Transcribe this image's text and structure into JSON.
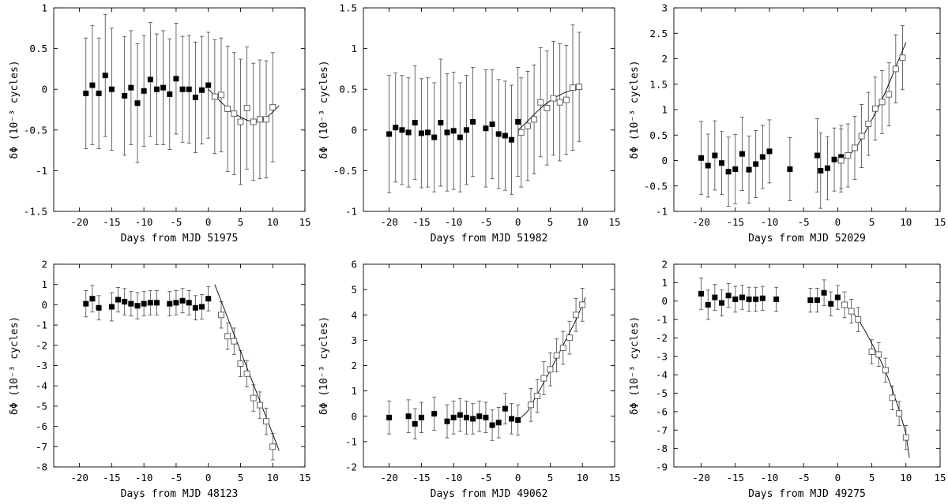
{
  "figure": {
    "description_panels": 6
  },
  "chart_data": [
    {
      "type": "scatter",
      "xlabel": "Days from MJD 51975",
      "ylabel": "δΦ (10⁻³ cycles)",
      "xlim": [
        -24,
        15
      ],
      "ylim": [
        -1.5,
        1
      ],
      "xticks": [
        -20,
        -15,
        -10,
        -5,
        0,
        5,
        10,
        15
      ],
      "yticks": [
        -1.5,
        -1,
        -0.5,
        0,
        0.5,
        1
      ],
      "yticklabels": [
        "-1.5",
        "-1",
        "-0.5",
        "0",
        "0.5",
        "1"
      ],
      "filled": [
        {
          "x": -19,
          "y": -0.05,
          "err": 0.68
        },
        {
          "x": -18,
          "y": 0.05,
          "err": 0.73
        },
        {
          "x": -17,
          "y": -0.05,
          "err": 0.68
        },
        {
          "x": -16,
          "y": 0.17,
          "err": 0.75
        },
        {
          "x": -15,
          "y": 0.0,
          "err": 0.75
        },
        {
          "x": -13,
          "y": -0.08,
          "err": 0.73
        },
        {
          "x": -12,
          "y": 0.02,
          "err": 0.7
        },
        {
          "x": -11,
          "y": -0.17,
          "err": 0.73
        },
        {
          "x": -10,
          "y": -0.02,
          "err": 0.68
        },
        {
          "x": -9,
          "y": 0.12,
          "err": 0.7
        },
        {
          "x": -8,
          "y": 0.0,
          "err": 0.68
        },
        {
          "x": -7,
          "y": 0.02,
          "err": 0.7
        },
        {
          "x": -6,
          "y": -0.06,
          "err": 0.68
        },
        {
          "x": -5,
          "y": 0.13,
          "err": 0.68
        },
        {
          "x": -4,
          "y": 0.0,
          "err": 0.65
        },
        {
          "x": -3,
          "y": 0.0,
          "err": 0.66
        },
        {
          "x": -2,
          "y": -0.1,
          "err": 0.68
        },
        {
          "x": -1,
          "y": -0.01,
          "err": 0.66
        },
        {
          "x": 0,
          "y": 0.05,
          "err": 0.65
        }
      ],
      "open": [
        {
          "x": 1,
          "y": -0.09,
          "err": 0.7
        },
        {
          "x": 2,
          "y": -0.07,
          "err": 0.7
        },
        {
          "x": 3,
          "y": -0.24,
          "err": 0.77
        },
        {
          "x": 4,
          "y": -0.3,
          "err": 0.75
        },
        {
          "x": 5,
          "y": -0.4,
          "err": 0.77
        },
        {
          "x": 6,
          "y": -0.23,
          "err": 0.75
        },
        {
          "x": 7,
          "y": -0.4,
          "err": 0.72
        },
        {
          "x": 8,
          "y": -0.37,
          "err": 0.73
        },
        {
          "x": 9,
          "y": -0.37,
          "err": 0.72
        },
        {
          "x": 10,
          "y": -0.22,
          "err": 0.67
        }
      ],
      "fit": {
        "x": [
          0,
          2,
          4,
          6,
          7,
          8,
          9,
          10,
          11
        ],
        "y": [
          0.0,
          -0.16,
          -0.3,
          -0.38,
          -0.4,
          -0.39,
          -0.35,
          -0.28,
          -0.2
        ]
      }
    },
    {
      "type": "scatter",
      "xlabel": "Days from MJD 51982",
      "ylabel": "δΦ (10⁻³ cycles)",
      "xlim": [
        -24,
        15
      ],
      "ylim": [
        -1,
        1.5
      ],
      "xticks": [
        -20,
        -15,
        -10,
        -5,
        0,
        5,
        10,
        15
      ],
      "yticks": [
        -1,
        -0.5,
        0,
        0.5,
        1,
        1.5
      ],
      "yticklabels": [
        "-1",
        "-0.5",
        "0",
        "0.5",
        "1",
        "1.5"
      ],
      "filled": [
        {
          "x": -20,
          "y": -0.05,
          "err": 0.72
        },
        {
          "x": -19,
          "y": 0.03,
          "err": 0.67
        },
        {
          "x": -18,
          "y": 0.0,
          "err": 0.67
        },
        {
          "x": -17,
          "y": -0.03,
          "err": 0.67
        },
        {
          "x": -16,
          "y": 0.09,
          "err": 0.7
        },
        {
          "x": -15,
          "y": -0.04,
          "err": 0.67
        },
        {
          "x": -14,
          "y": -0.03,
          "err": 0.67
        },
        {
          "x": -13,
          "y": -0.09,
          "err": 0.67
        },
        {
          "x": -12,
          "y": 0.09,
          "err": 0.78
        },
        {
          "x": -11,
          "y": -0.03,
          "err": 0.72
        },
        {
          "x": -10,
          "y": -0.01,
          "err": 0.72
        },
        {
          "x": -9,
          "y": -0.09,
          "err": 0.67
        },
        {
          "x": -8,
          "y": 0.0,
          "err": 0.67
        },
        {
          "x": -7,
          "y": 0.1,
          "err": 0.67
        },
        {
          "x": -5,
          "y": 0.02,
          "err": 0.72
        },
        {
          "x": -4,
          "y": 0.07,
          "err": 0.67
        },
        {
          "x": -3,
          "y": -0.05,
          "err": 0.67
        },
        {
          "x": -2,
          "y": -0.07,
          "err": 0.67
        },
        {
          "x": -1,
          "y": -0.12,
          "err": 0.67
        },
        {
          "x": 0,
          "y": 0.1,
          "err": 0.67
        }
      ],
      "open": [
        {
          "x": 0.5,
          "y": -0.03,
          "err": 0.67
        },
        {
          "x": 1.5,
          "y": 0.05,
          "err": 0.67
        },
        {
          "x": 2.5,
          "y": 0.13,
          "err": 0.67
        },
        {
          "x": 3.5,
          "y": 0.34,
          "err": 0.67
        },
        {
          "x": 4.5,
          "y": 0.27,
          "err": 0.7
        },
        {
          "x": 5.5,
          "y": 0.39,
          "err": 0.7
        },
        {
          "x": 6.5,
          "y": 0.34,
          "err": 0.72
        },
        {
          "x": 7.5,
          "y": 0.37,
          "err": 0.67
        },
        {
          "x": 8.5,
          "y": 0.52,
          "err": 0.77
        },
        {
          "x": 9.5,
          "y": 0.53,
          "err": 0.67
        }
      ],
      "fit": {
        "x": [
          0,
          1,
          2,
          3,
          4,
          5,
          6,
          7,
          8,
          9,
          10
        ],
        "y": [
          0.0,
          0.07,
          0.15,
          0.23,
          0.3,
          0.36,
          0.41,
          0.45,
          0.48,
          0.5,
          0.51
        ]
      }
    },
    {
      "type": "scatter",
      "xlabel": "Days from MJD 52029",
      "ylabel": "δΦ (10⁻³ cycles)",
      "xlim": [
        -24,
        15
      ],
      "ylim": [
        -1,
        3
      ],
      "xticks": [
        -20,
        -15,
        -10,
        -5,
        0,
        5,
        10,
        15
      ],
      "yticks": [
        -1,
        -0.5,
        0,
        0.5,
        1,
        1.5,
        2,
        2.5,
        3
      ],
      "yticklabels": [
        "-1",
        "-0.5",
        "0",
        "0.5",
        "1",
        "1.5",
        "2",
        "2.5",
        "3"
      ],
      "filled": [
        {
          "x": -20,
          "y": 0.05,
          "err": 0.72
        },
        {
          "x": -19,
          "y": -0.1,
          "err": 0.62
        },
        {
          "x": -18,
          "y": 0.1,
          "err": 0.68
        },
        {
          "x": -17,
          "y": -0.05,
          "err": 0.62
        },
        {
          "x": -16,
          "y": -0.22,
          "err": 0.68
        },
        {
          "x": -15,
          "y": -0.17,
          "err": 0.68
        },
        {
          "x": -14,
          "y": 0.13,
          "err": 0.72
        },
        {
          "x": -13,
          "y": -0.18,
          "err": 0.66
        },
        {
          "x": -12,
          "y": -0.07,
          "err": 0.66
        },
        {
          "x": -11,
          "y": 0.07,
          "err": 0.62
        },
        {
          "x": -10,
          "y": 0.18,
          "err": 0.62
        },
        {
          "x": -7,
          "y": -0.17,
          "err": 0.62
        },
        {
          "x": -3,
          "y": 0.1,
          "err": 0.72
        },
        {
          "x": -2.5,
          "y": -0.2,
          "err": 0.74
        },
        {
          "x": -1.5,
          "y": -0.15,
          "err": 0.62
        },
        {
          "x": -0.5,
          "y": 0.02,
          "err": 0.62
        },
        {
          "x": 0.5,
          "y": 0.07,
          "err": 0.62
        }
      ],
      "open": [
        {
          "x": 0.5,
          "y": 0.0,
          "err": 0.62
        },
        {
          "x": 1.5,
          "y": 0.1,
          "err": 0.62
        },
        {
          "x": 2.5,
          "y": 0.25,
          "err": 0.62
        },
        {
          "x": 3.5,
          "y": 0.48,
          "err": 0.62
        },
        {
          "x": 4.5,
          "y": 0.72,
          "err": 0.62
        },
        {
          "x": 5.5,
          "y": 1.02,
          "err": 0.62
        },
        {
          "x": 6.5,
          "y": 1.15,
          "err": 0.62
        },
        {
          "x": 7.5,
          "y": 1.3,
          "err": 0.62
        },
        {
          "x": 8.5,
          "y": 1.8,
          "err": 0.67
        },
        {
          "x": 9.5,
          "y": 2.02,
          "err": 0.63
        }
      ],
      "fit": {
        "x": [
          0,
          1,
          2,
          3,
          4,
          5,
          6,
          7,
          8,
          9,
          10
        ],
        "y": [
          0.0,
          0.04,
          0.15,
          0.32,
          0.55,
          0.8,
          1.06,
          1.35,
          1.67,
          2.0,
          2.32
        ]
      }
    },
    {
      "type": "scatter",
      "xlabel": "Days from MJD 48123",
      "ylabel": "δΦ (10⁻³ cycles)",
      "xlim": [
        -24,
        15
      ],
      "ylim": [
        -8,
        2
      ],
      "xticks": [
        -20,
        -15,
        -10,
        -5,
        0,
        5,
        10,
        15
      ],
      "yticks": [
        -8,
        -7,
        -6,
        -5,
        -4,
        -3,
        -2,
        -1,
        0,
        1,
        2
      ],
      "yticklabels": [
        "-8",
        "-7",
        "-6",
        "-5",
        "-4",
        "-3",
        "-2",
        "-1",
        "0",
        "1",
        "2"
      ],
      "filled": [
        {
          "x": -19,
          "y": 0.05,
          "err": 0.65
        },
        {
          "x": -18,
          "y": 0.3,
          "err": 0.65
        },
        {
          "x": -17,
          "y": -0.15,
          "err": 0.6
        },
        {
          "x": -15,
          "y": -0.1,
          "err": 0.7
        },
        {
          "x": -14,
          "y": 0.25,
          "err": 0.6
        },
        {
          "x": -13,
          "y": 0.15,
          "err": 0.65
        },
        {
          "x": -12,
          "y": 0.05,
          "err": 0.6
        },
        {
          "x": -11,
          "y": -0.05,
          "err": 0.65
        },
        {
          "x": -10,
          "y": 0.05,
          "err": 0.6
        },
        {
          "x": -9,
          "y": 0.1,
          "err": 0.6
        },
        {
          "x": -8,
          "y": 0.1,
          "err": 0.6
        },
        {
          "x": -6,
          "y": 0.05,
          "err": 0.6
        },
        {
          "x": -5,
          "y": 0.1,
          "err": 0.6
        },
        {
          "x": -4,
          "y": 0.2,
          "err": 0.6
        },
        {
          "x": -3,
          "y": 0.1,
          "err": 0.6
        },
        {
          "x": -2,
          "y": -0.15,
          "err": 0.6
        },
        {
          "x": -1,
          "y": -0.1,
          "err": 0.6
        },
        {
          "x": 0,
          "y": 0.3,
          "err": 0.6
        }
      ],
      "open": [
        {
          "x": 2,
          "y": -0.5,
          "err": 0.65
        },
        {
          "x": 3,
          "y": -1.55,
          "err": 0.65
        },
        {
          "x": 4,
          "y": -1.8,
          "err": 0.65
        },
        {
          "x": 5,
          "y": -2.9,
          "err": 0.65
        },
        {
          "x": 6,
          "y": -3.4,
          "err": 0.65
        },
        {
          "x": 7,
          "y": -4.6,
          "err": 0.65
        },
        {
          "x": 8,
          "y": -4.95,
          "err": 0.65
        },
        {
          "x": 9,
          "y": -5.75,
          "err": 0.65
        },
        {
          "x": 10,
          "y": -7.0,
          "err": 0.65
        }
      ],
      "fit": {
        "x": [
          1,
          11
        ],
        "y": [
          1.0,
          -7.2
        ]
      }
    },
    {
      "type": "scatter",
      "xlabel": "Days from MJD 49062",
      "ylabel": "δΦ (10⁻³ cycles)",
      "xlim": [
        -24,
        15
      ],
      "ylim": [
        -2,
        6
      ],
      "xticks": [
        -20,
        -15,
        -10,
        -5,
        0,
        5,
        10,
        15
      ],
      "yticks": [
        -2,
        -1,
        0,
        1,
        2,
        3,
        4,
        5,
        6
      ],
      "yticklabels": [
        "-2",
        "-1",
        "0",
        "1",
        "2",
        "3",
        "4",
        "5",
        "6"
      ],
      "filled": [
        {
          "x": -20,
          "y": -0.05,
          "err": 0.65
        },
        {
          "x": -17,
          "y": 0.0,
          "err": 0.65
        },
        {
          "x": -16,
          "y": -0.3,
          "err": 0.6
        },
        {
          "x": -15,
          "y": -0.05,
          "err": 0.6
        },
        {
          "x": -13,
          "y": 0.1,
          "err": 0.65
        },
        {
          "x": -11,
          "y": -0.2,
          "err": 0.65
        },
        {
          "x": -10,
          "y": -0.05,
          "err": 0.65
        },
        {
          "x": -9,
          "y": 0.05,
          "err": 0.65
        },
        {
          "x": -8,
          "y": -0.05,
          "err": 0.65
        },
        {
          "x": -7,
          "y": -0.1,
          "err": 0.6
        },
        {
          "x": -6,
          "y": 0.0,
          "err": 0.6
        },
        {
          "x": -5,
          "y": -0.05,
          "err": 0.6
        },
        {
          "x": -4,
          "y": -0.35,
          "err": 0.6
        },
        {
          "x": -3,
          "y": -0.25,
          "err": 0.6
        },
        {
          "x": -2,
          "y": 0.3,
          "err": 0.6
        },
        {
          "x": -1,
          "y": -0.1,
          "err": 0.6
        },
        {
          "x": 0,
          "y": -0.15,
          "err": 0.6
        }
      ],
      "open": [
        {
          "x": 2,
          "y": 0.45,
          "err": 0.65
        },
        {
          "x": 3,
          "y": 0.8,
          "err": 0.65
        },
        {
          "x": 4,
          "y": 1.5,
          "err": 0.65
        },
        {
          "x": 5,
          "y": 1.85,
          "err": 0.65
        },
        {
          "x": 6,
          "y": 2.4,
          "err": 0.65
        },
        {
          "x": 7,
          "y": 2.7,
          "err": 0.65
        },
        {
          "x": 8,
          "y": 3.1,
          "err": 0.65
        },
        {
          "x": 9,
          "y": 4.0,
          "err": 0.65
        },
        {
          "x": 10,
          "y": 4.4,
          "err": 0.65
        }
      ],
      "fit": {
        "x": [
          0.5,
          1.5,
          2.5,
          3.5,
          5,
          7,
          9,
          10.5
        ],
        "y": [
          -0.05,
          0.2,
          0.65,
          1.1,
          1.8,
          2.8,
          3.8,
          4.7
        ]
      }
    },
    {
      "type": "scatter",
      "xlabel": "Days from MJD 49275",
      "ylabel": "δΦ (10⁻³ cycles)",
      "xlim": [
        -24,
        15
      ],
      "ylim": [
        -9,
        2
      ],
      "xticks": [
        -20,
        -15,
        -10,
        -5,
        0,
        5,
        10,
        15
      ],
      "yticks": [
        -9,
        -8,
        -7,
        -6,
        -5,
        -4,
        -3,
        -2,
        -1,
        0,
        1,
        2
      ],
      "yticklabels": [
        "-9",
        "-8",
        "-7",
        "-6",
        "-5",
        "-4",
        "-3",
        "-2",
        "-1",
        "0",
        "1",
        "2"
      ],
      "filled": [
        {
          "x": -20,
          "y": 0.4,
          "err": 0.85
        },
        {
          "x": -19,
          "y": -0.2,
          "err": 0.8
        },
        {
          "x": -18,
          "y": 0.2,
          "err": 0.7
        },
        {
          "x": -17,
          "y": -0.1,
          "err": 0.7
        },
        {
          "x": -16,
          "y": 0.3,
          "err": 0.65
        },
        {
          "x": -15,
          "y": 0.1,
          "err": 0.7
        },
        {
          "x": -14,
          "y": 0.2,
          "err": 0.65
        },
        {
          "x": -13,
          "y": 0.1,
          "err": 0.65
        },
        {
          "x": -12,
          "y": 0.1,
          "err": 0.65
        },
        {
          "x": -11,
          "y": 0.15,
          "err": 0.65
        },
        {
          "x": -9,
          "y": 0.1,
          "err": 0.65
        },
        {
          "x": -4,
          "y": 0.05,
          "err": 0.65
        },
        {
          "x": -3,
          "y": 0.05,
          "err": 0.65
        },
        {
          "x": -2,
          "y": 0.45,
          "err": 0.7
        },
        {
          "x": -1,
          "y": -0.15,
          "err": 0.65
        },
        {
          "x": 0,
          "y": 0.2,
          "err": 0.65
        }
      ],
      "open": [
        {
          "x": 1,
          "y": -0.2,
          "err": 0.7
        },
        {
          "x": 2,
          "y": -0.55,
          "err": 0.65
        },
        {
          "x": 3,
          "y": -1.0,
          "err": 0.65
        },
        {
          "x": 5,
          "y": -2.75,
          "err": 0.65
        },
        {
          "x": 6,
          "y": -2.9,
          "err": 0.65
        },
        {
          "x": 7,
          "y": -3.75,
          "err": 0.65
        },
        {
          "x": 8,
          "y": -5.25,
          "err": 0.65
        },
        {
          "x": 9,
          "y": -6.1,
          "err": 0.65
        },
        {
          "x": 10,
          "y": -7.4,
          "err": 0.65
        }
      ],
      "fit": {
        "x": [
          0.5,
          2,
          3,
          4,
          5,
          6,
          7,
          8,
          9,
          10,
          10.5
        ],
        "y": [
          -0.1,
          -0.5,
          -1.0,
          -1.6,
          -2.3,
          -3.0,
          -3.8,
          -4.8,
          -5.9,
          -7.2,
          -8.5
        ]
      }
    }
  ]
}
